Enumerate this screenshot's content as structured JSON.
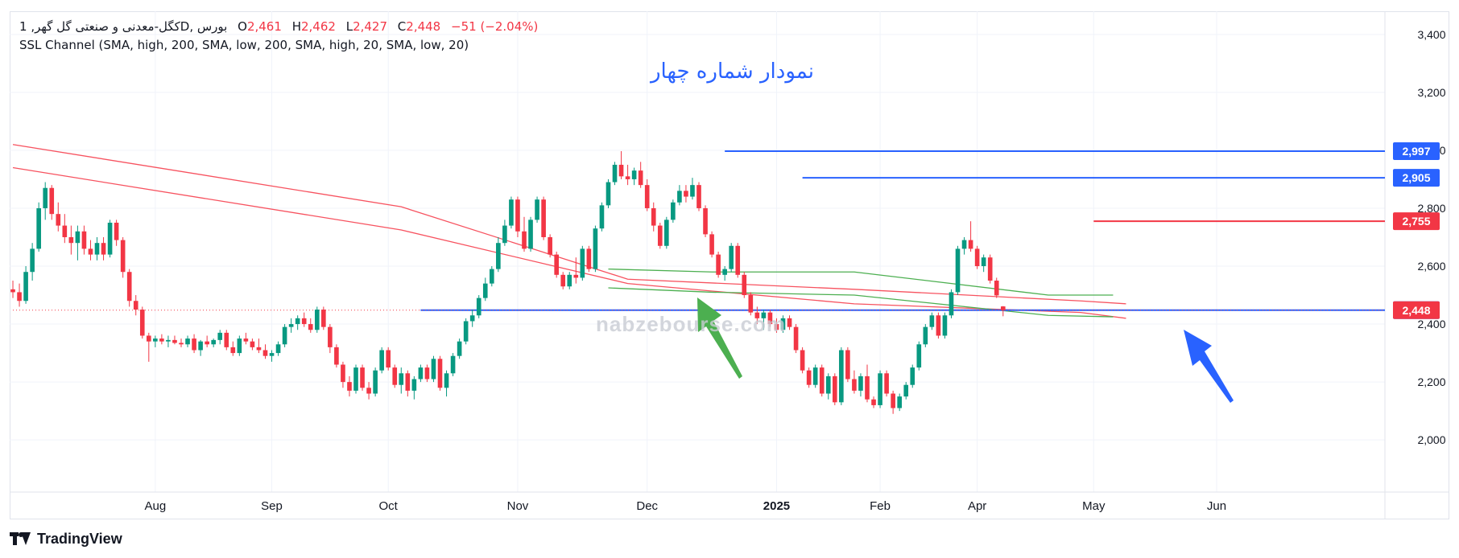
{
  "legend": {
    "symbol": "کگل-معدنی و صنعتی گل گهر, 1D, بورس",
    "o_label": "O",
    "o_value": "2,461",
    "h_label": "H",
    "h_value": "2,462",
    "l_label": "L",
    "l_value": "2,427",
    "c_label": "C",
    "c_value": "2,448",
    "change": "−51 (−2.04%)",
    "indicator": "SSL Channel (SMA, high, 200, SMA, low, 200, SMA, high, 20, SMA, low, 20)"
  },
  "title": "نمودار شماره چهار",
  "watermark": "nabzebourse.com",
  "brand": "TradingView",
  "colors": {
    "up": "#089981",
    "down": "#f23645",
    "level_blue": "#2962ff",
    "ssl_long": "#f7525f",
    "ssl_short": "#4caf50",
    "arrow_green": "#4caf50",
    "arrow_blue": "#2962ff",
    "grid": "#f0f3fa"
  },
  "chart_data": {
    "type": "candlestick",
    "ylim": [
      1820,
      3480
    ],
    "y_ticks": [
      "2,000",
      "2,200",
      "2,400",
      "2,600",
      "2,800",
      "3,000",
      "3,200",
      "3,400"
    ],
    "y_tick_values": [
      2000,
      2200,
      2400,
      2600,
      2800,
      3000,
      3200,
      3400
    ],
    "x_ticks": [
      "Aug",
      "Sep",
      "Oct",
      "Nov",
      "Dec",
      "2025",
      "Feb",
      "Apr",
      "May",
      "Jun"
    ],
    "x_tick_index": [
      22,
      40,
      58,
      78,
      98,
      118,
      134,
      149,
      167,
      186
    ],
    "x_range_bars": [
      -0.5,
      212
    ],
    "price_labels": [
      {
        "value": 2997,
        "text": "2,997",
        "color": "#2962ff",
        "start_bar": 110,
        "end_bar": 212
      },
      {
        "value": 2905,
        "text": "2,905",
        "color": "#2962ff",
        "start_bar": 122,
        "end_bar": 212
      },
      {
        "value": 2755,
        "text": "2,755",
        "color": "#f23645",
        "start_bar": 167,
        "end_bar": 212
      },
      {
        "value": 2448,
        "text": "2,448",
        "color": "#2962ff",
        "start_bar": 63,
        "end_bar": 212
      },
      {
        "value": 2448,
        "text": "2,448",
        "color": "#f23645",
        "start_bar": 0,
        "end_bar": 212,
        "dotted": true
      }
    ],
    "ssl_long": {
      "upper": [
        [
          0,
          3020
        ],
        [
          60,
          2805
        ],
        [
          95,
          2555
        ],
        [
          130,
          2520
        ],
        [
          165,
          2480
        ],
        [
          172,
          2470
        ]
      ],
      "lower": [
        [
          0,
          2940
        ],
        [
          60,
          2725
        ],
        [
          95,
          2540
        ],
        [
          130,
          2470
        ],
        [
          165,
          2440
        ],
        [
          172,
          2420
        ]
      ]
    },
    "ssl_short": {
      "upper": [
        [
          92,
          2590
        ],
        [
          108,
          2580
        ],
        [
          130,
          2580
        ],
        [
          160,
          2500
        ],
        [
          170,
          2500
        ]
      ],
      "lower": [
        [
          92,
          2525
        ],
        [
          108,
          2510
        ],
        [
          130,
          2500
        ],
        [
          160,
          2430
        ],
        [
          170,
          2425
        ]
      ]
    },
    "candles": [
      {
        "o": 2520,
        "h": 2550,
        "l": 2490,
        "c": 2510
      },
      {
        "o": 2510,
        "h": 2540,
        "l": 2460,
        "c": 2480
      },
      {
        "o": 2480,
        "h": 2600,
        "l": 2470,
        "c": 2580
      },
      {
        "o": 2580,
        "h": 2680,
        "l": 2550,
        "c": 2660
      },
      {
        "o": 2660,
        "h": 2820,
        "l": 2650,
        "c": 2800
      },
      {
        "o": 2800,
        "h": 2890,
        "l": 2760,
        "c": 2870
      },
      {
        "o": 2870,
        "h": 2880,
        "l": 2760,
        "c": 2780
      },
      {
        "o": 2780,
        "h": 2820,
        "l": 2720,
        "c": 2740
      },
      {
        "o": 2740,
        "h": 2780,
        "l": 2680,
        "c": 2700
      },
      {
        "o": 2700,
        "h": 2740,
        "l": 2640,
        "c": 2680
      },
      {
        "o": 2680,
        "h": 2740,
        "l": 2620,
        "c": 2720
      },
      {
        "o": 2720,
        "h": 2740,
        "l": 2640,
        "c": 2660
      },
      {
        "o": 2660,
        "h": 2690,
        "l": 2620,
        "c": 2640
      },
      {
        "o": 2640,
        "h": 2700,
        "l": 2620,
        "c": 2680
      },
      {
        "o": 2680,
        "h": 2700,
        "l": 2620,
        "c": 2640
      },
      {
        "o": 2640,
        "h": 2760,
        "l": 2630,
        "c": 2750
      },
      {
        "o": 2750,
        "h": 2760,
        "l": 2670,
        "c": 2690
      },
      {
        "o": 2690,
        "h": 2700,
        "l": 2560,
        "c": 2580
      },
      {
        "o": 2580,
        "h": 2590,
        "l": 2460,
        "c": 2480
      },
      {
        "o": 2480,
        "h": 2500,
        "l": 2430,
        "c": 2450
      },
      {
        "o": 2450,
        "h": 2460,
        "l": 2350,
        "c": 2360
      },
      {
        "o": 2360,
        "h": 2370,
        "l": 2270,
        "c": 2340
      },
      {
        "o": 2340,
        "h": 2360,
        "l": 2320,
        "c": 2350
      },
      {
        "o": 2350,
        "h": 2365,
        "l": 2330,
        "c": 2340
      },
      {
        "o": 2340,
        "h": 2360,
        "l": 2320,
        "c": 2345
      },
      {
        "o": 2345,
        "h": 2360,
        "l": 2330,
        "c": 2335
      },
      {
        "o": 2335,
        "h": 2350,
        "l": 2320,
        "c": 2330
      },
      {
        "o": 2330,
        "h": 2360,
        "l": 2320,
        "c": 2350
      },
      {
        "o": 2350,
        "h": 2365,
        "l": 2300,
        "c": 2310
      },
      {
        "o": 2310,
        "h": 2345,
        "l": 2290,
        "c": 2340
      },
      {
        "o": 2340,
        "h": 2360,
        "l": 2320,
        "c": 2330
      },
      {
        "o": 2330,
        "h": 2350,
        "l": 2320,
        "c": 2345
      },
      {
        "o": 2345,
        "h": 2380,
        "l": 2330,
        "c": 2370
      },
      {
        "o": 2370,
        "h": 2380,
        "l": 2310,
        "c": 2320
      },
      {
        "o": 2320,
        "h": 2340,
        "l": 2290,
        "c": 2300
      },
      {
        "o": 2300,
        "h": 2360,
        "l": 2290,
        "c": 2350
      },
      {
        "o": 2350,
        "h": 2370,
        "l": 2330,
        "c": 2340
      },
      {
        "o": 2340,
        "h": 2350,
        "l": 2310,
        "c": 2320
      },
      {
        "o": 2320,
        "h": 2350,
        "l": 2300,
        "c": 2310
      },
      {
        "o": 2310,
        "h": 2330,
        "l": 2280,
        "c": 2290
      },
      {
        "o": 2290,
        "h": 2310,
        "l": 2270,
        "c": 2300
      },
      {
        "o": 2300,
        "h": 2340,
        "l": 2290,
        "c": 2330
      },
      {
        "o": 2330,
        "h": 2400,
        "l": 2320,
        "c": 2390
      },
      {
        "o": 2390,
        "h": 2420,
        "l": 2370,
        "c": 2400
      },
      {
        "o": 2400,
        "h": 2430,
        "l": 2380,
        "c": 2420
      },
      {
        "o": 2420,
        "h": 2440,
        "l": 2390,
        "c": 2400
      },
      {
        "o": 2400,
        "h": 2420,
        "l": 2370,
        "c": 2380
      },
      {
        "o": 2380,
        "h": 2460,
        "l": 2370,
        "c": 2450
      },
      {
        "o": 2450,
        "h": 2460,
        "l": 2380,
        "c": 2390
      },
      {
        "o": 2390,
        "h": 2400,
        "l": 2300,
        "c": 2320
      },
      {
        "o": 2320,
        "h": 2330,
        "l": 2250,
        "c": 2260
      },
      {
        "o": 2260,
        "h": 2270,
        "l": 2180,
        "c": 2200
      },
      {
        "o": 2200,
        "h": 2220,
        "l": 2150,
        "c": 2170
      },
      {
        "o": 2170,
        "h": 2260,
        "l": 2160,
        "c": 2250
      },
      {
        "o": 2250,
        "h": 2260,
        "l": 2170,
        "c": 2180
      },
      {
        "o": 2180,
        "h": 2200,
        "l": 2140,
        "c": 2160
      },
      {
        "o": 2160,
        "h": 2250,
        "l": 2150,
        "c": 2240
      },
      {
        "o": 2240,
        "h": 2320,
        "l": 2230,
        "c": 2310
      },
      {
        "o": 2310,
        "h": 2320,
        "l": 2240,
        "c": 2250
      },
      {
        "o": 2250,
        "h": 2260,
        "l": 2180,
        "c": 2190
      },
      {
        "o": 2190,
        "h": 2250,
        "l": 2160,
        "c": 2230
      },
      {
        "o": 2230,
        "h": 2240,
        "l": 2150,
        "c": 2170
      },
      {
        "o": 2170,
        "h": 2220,
        "l": 2140,
        "c": 2210
      },
      {
        "o": 2210,
        "h": 2260,
        "l": 2200,
        "c": 2250
      },
      {
        "o": 2250,
        "h": 2260,
        "l": 2200,
        "c": 2210
      },
      {
        "o": 2210,
        "h": 2290,
        "l": 2200,
        "c": 2280
      },
      {
        "o": 2280,
        "h": 2290,
        "l": 2170,
        "c": 2180
      },
      {
        "o": 2180,
        "h": 2240,
        "l": 2150,
        "c": 2230
      },
      {
        "o": 2230,
        "h": 2300,
        "l": 2220,
        "c": 2290
      },
      {
        "o": 2290,
        "h": 2350,
        "l": 2280,
        "c": 2340
      },
      {
        "o": 2340,
        "h": 2420,
        "l": 2330,
        "c": 2410
      },
      {
        "o": 2410,
        "h": 2450,
        "l": 2390,
        "c": 2430
      },
      {
        "o": 2430,
        "h": 2500,
        "l": 2420,
        "c": 2490
      },
      {
        "o": 2490,
        "h": 2560,
        "l": 2480,
        "c": 2540
      },
      {
        "o": 2540,
        "h": 2600,
        "l": 2530,
        "c": 2590
      },
      {
        "o": 2590,
        "h": 2700,
        "l": 2580,
        "c": 2680
      },
      {
        "o": 2680,
        "h": 2760,
        "l": 2670,
        "c": 2740
      },
      {
        "o": 2740,
        "h": 2840,
        "l": 2730,
        "c": 2830
      },
      {
        "o": 2830,
        "h": 2840,
        "l": 2700,
        "c": 2720
      },
      {
        "o": 2720,
        "h": 2770,
        "l": 2650,
        "c": 2660
      },
      {
        "o": 2660,
        "h": 2770,
        "l": 2650,
        "c": 2760
      },
      {
        "o": 2760,
        "h": 2840,
        "l": 2750,
        "c": 2830
      },
      {
        "o": 2830,
        "h": 2840,
        "l": 2690,
        "c": 2700
      },
      {
        "o": 2700,
        "h": 2710,
        "l": 2630,
        "c": 2640
      },
      {
        "o": 2640,
        "h": 2650,
        "l": 2560,
        "c": 2570
      },
      {
        "o": 2570,
        "h": 2580,
        "l": 2520,
        "c": 2530
      },
      {
        "o": 2530,
        "h": 2580,
        "l": 2520,
        "c": 2570
      },
      {
        "o": 2570,
        "h": 2630,
        "l": 2540,
        "c": 2560
      },
      {
        "o": 2560,
        "h": 2670,
        "l": 2550,
        "c": 2660
      },
      {
        "o": 2660,
        "h": 2670,
        "l": 2580,
        "c": 2590
      },
      {
        "o": 2590,
        "h": 2740,
        "l": 2580,
        "c": 2730
      },
      {
        "o": 2730,
        "h": 2820,
        "l": 2720,
        "c": 2810
      },
      {
        "o": 2810,
        "h": 2900,
        "l": 2800,
        "c": 2890
      },
      {
        "o": 2890,
        "h": 2960,
        "l": 2880,
        "c": 2950
      },
      {
        "o": 2950,
        "h": 2997,
        "l": 2900,
        "c": 2910
      },
      {
        "o": 2910,
        "h": 2950,
        "l": 2880,
        "c": 2900
      },
      {
        "o": 2900,
        "h": 2940,
        "l": 2880,
        "c": 2930
      },
      {
        "o": 2930,
        "h": 2960,
        "l": 2870,
        "c": 2880
      },
      {
        "o": 2880,
        "h": 2900,
        "l": 2790,
        "c": 2800
      },
      {
        "o": 2800,
        "h": 2820,
        "l": 2720,
        "c": 2740
      },
      {
        "o": 2740,
        "h": 2750,
        "l": 2660,
        "c": 2670
      },
      {
        "o": 2670,
        "h": 2770,
        "l": 2660,
        "c": 2760
      },
      {
        "o": 2760,
        "h": 2830,
        "l": 2750,
        "c": 2820
      },
      {
        "o": 2820,
        "h": 2880,
        "l": 2810,
        "c": 2860
      },
      {
        "o": 2860,
        "h": 2880,
        "l": 2820,
        "c": 2840
      },
      {
        "o": 2840,
        "h": 2905,
        "l": 2830,
        "c": 2880
      },
      {
        "o": 2880,
        "h": 2890,
        "l": 2790,
        "c": 2800
      },
      {
        "o": 2800,
        "h": 2810,
        "l": 2700,
        "c": 2710
      },
      {
        "o": 2710,
        "h": 2720,
        "l": 2630,
        "c": 2640
      },
      {
        "o": 2640,
        "h": 2650,
        "l": 2560,
        "c": 2570
      },
      {
        "o": 2570,
        "h": 2600,
        "l": 2550,
        "c": 2590
      },
      {
        "o": 2590,
        "h": 2680,
        "l": 2580,
        "c": 2670
      },
      {
        "o": 2670,
        "h": 2680,
        "l": 2560,
        "c": 2570
      },
      {
        "o": 2570,
        "h": 2580,
        "l": 2490,
        "c": 2500
      },
      {
        "o": 2500,
        "h": 2510,
        "l": 2430,
        "c": 2440
      },
      {
        "o": 2440,
        "h": 2460,
        "l": 2400,
        "c": 2420
      },
      {
        "o": 2420,
        "h": 2450,
        "l": 2380,
        "c": 2440
      },
      {
        "o": 2440,
        "h": 2450,
        "l": 2390,
        "c": 2400
      },
      {
        "o": 2400,
        "h": 2420,
        "l": 2370,
        "c": 2380
      },
      {
        "o": 2380,
        "h": 2430,
        "l": 2370,
        "c": 2420
      },
      {
        "o": 2420,
        "h": 2430,
        "l": 2380,
        "c": 2390
      },
      {
        "o": 2390,
        "h": 2400,
        "l": 2300,
        "c": 2310
      },
      {
        "o": 2310,
        "h": 2320,
        "l": 2230,
        "c": 2240
      },
      {
        "o": 2240,
        "h": 2250,
        "l": 2180,
        "c": 2190
      },
      {
        "o": 2190,
        "h": 2260,
        "l": 2180,
        "c": 2250
      },
      {
        "o": 2250,
        "h": 2260,
        "l": 2150,
        "c": 2160
      },
      {
        "o": 2160,
        "h": 2230,
        "l": 2140,
        "c": 2220
      },
      {
        "o": 2220,
        "h": 2230,
        "l": 2120,
        "c": 2130
      },
      {
        "o": 2130,
        "h": 2320,
        "l": 2120,
        "c": 2310
      },
      {
        "o": 2310,
        "h": 2320,
        "l": 2200,
        "c": 2210
      },
      {
        "o": 2210,
        "h": 2240,
        "l": 2160,
        "c": 2170
      },
      {
        "o": 2170,
        "h": 2230,
        "l": 2150,
        "c": 2220
      },
      {
        "o": 2220,
        "h": 2260,
        "l": 2130,
        "c": 2140
      },
      {
        "o": 2140,
        "h": 2150,
        "l": 2110,
        "c": 2120
      },
      {
        "o": 2120,
        "h": 2240,
        "l": 2110,
        "c": 2230
      },
      {
        "o": 2230,
        "h": 2240,
        "l": 2150,
        "c": 2160
      },
      {
        "o": 2160,
        "h": 2170,
        "l": 2090,
        "c": 2110
      },
      {
        "o": 2110,
        "h": 2160,
        "l": 2100,
        "c": 2150
      },
      {
        "o": 2150,
        "h": 2200,
        "l": 2140,
        "c": 2190
      },
      {
        "o": 2190,
        "h": 2260,
        "l": 2180,
        "c": 2250
      },
      {
        "o": 2250,
        "h": 2340,
        "l": 2240,
        "c": 2330
      },
      {
        "o": 2330,
        "h": 2400,
        "l": 2320,
        "c": 2390
      },
      {
        "o": 2390,
        "h": 2440,
        "l": 2380,
        "c": 2430
      },
      {
        "o": 2430,
        "h": 2440,
        "l": 2350,
        "c": 2360
      },
      {
        "o": 2360,
        "h": 2440,
        "l": 2350,
        "c": 2430
      },
      {
        "o": 2430,
        "h": 2520,
        "l": 2420,
        "c": 2510
      },
      {
        "o": 2510,
        "h": 2670,
        "l": 2500,
        "c": 2660
      },
      {
        "o": 2660,
        "h": 2700,
        "l": 2640,
        "c": 2690
      },
      {
        "o": 2690,
        "h": 2755,
        "l": 2650,
        "c": 2660
      },
      {
        "o": 2660,
        "h": 2670,
        "l": 2590,
        "c": 2600
      },
      {
        "o": 2600,
        "h": 2640,
        "l": 2580,
        "c": 2630
      },
      {
        "o": 2630,
        "h": 2640,
        "l": 2540,
        "c": 2550
      },
      {
        "o": 2550,
        "h": 2560,
        "l": 2490,
        "c": 2499
      },
      {
        "o": 2461,
        "h": 2462,
        "l": 2427,
        "c": 2448
      }
    ]
  }
}
